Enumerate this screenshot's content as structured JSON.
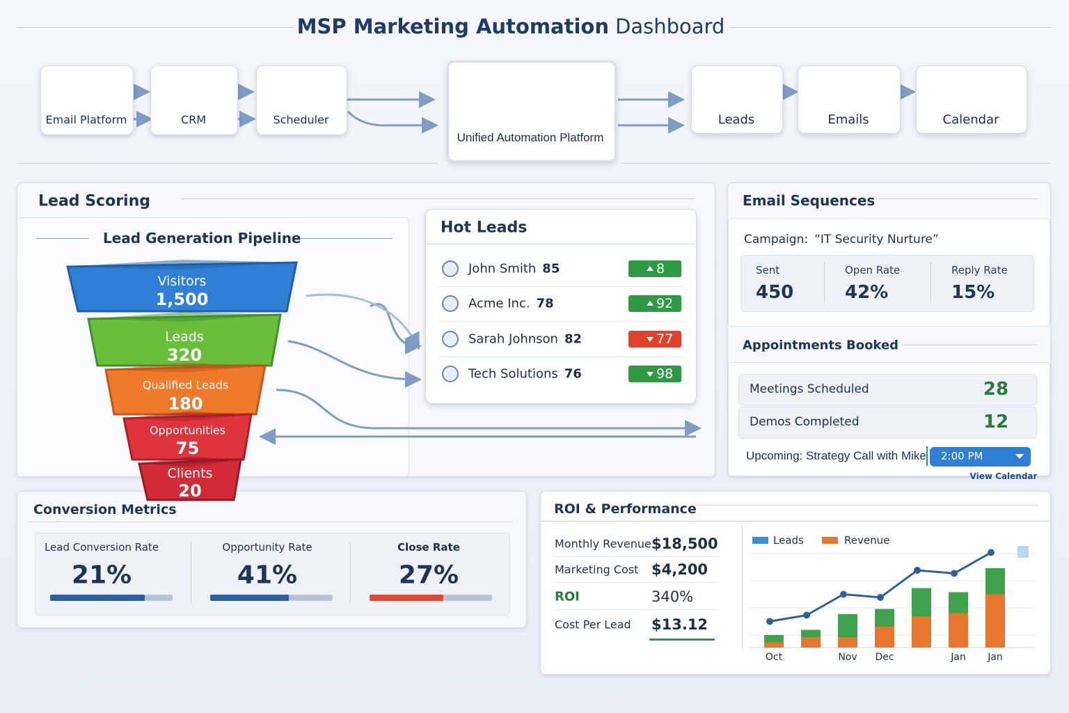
{
  "header": {
    "title_bold": "MSP Marketing Automation",
    "title_rest": "Dashboard"
  },
  "flow": {
    "sources": [
      "Email Platform",
      "CRM",
      "Scheduler"
    ],
    "hub": "Unified Automation Platform",
    "outputs": [
      "Leads",
      "Emails",
      "Calendar"
    ]
  },
  "lead_scoring": {
    "title": "Lead Scoring",
    "pipeline": {
      "title": "Lead Generation Pipeline",
      "stages": [
        {
          "label": "Visitors",
          "value": "1,500"
        },
        {
          "label": "Leads",
          "value": "320"
        },
        {
          "label": "Qualified Leads",
          "value": "180"
        },
        {
          "label": "Opportunities",
          "value": "75"
        },
        {
          "label": "Clients",
          "value": "20"
        }
      ]
    },
    "hot_leads": {
      "title": "Hot Leads",
      "rows": [
        {
          "name": "John Smith",
          "score": "85",
          "badge": "8",
          "trend": "up",
          "color": "#2e9a44"
        },
        {
          "name": "Acme Inc.",
          "score": "78",
          "badge": "92",
          "trend": "up",
          "color": "#2e9a44"
        },
        {
          "name": "Sarah Johnson",
          "score": "82",
          "badge": "77",
          "trend": "down",
          "color": "#e3412c"
        },
        {
          "name": "Tech Solutions",
          "score": "76",
          "badge": "98",
          "trend": "down",
          "color": "#2e9a44"
        }
      ]
    }
  },
  "email_sequences": {
    "title": "Email Sequences",
    "campaign_label": "Campaign:",
    "campaign": "“IT Security Nurture”",
    "stats": [
      {
        "label": "Sent",
        "value": "450"
      },
      {
        "label": "Open Rate",
        "value": "42%"
      },
      {
        "label": "Reply Rate",
        "value": "15%"
      }
    ]
  },
  "appointments": {
    "title": "Appointments Booked",
    "rows": [
      {
        "label": "Meetings Scheduled",
        "value": "28"
      },
      {
        "label": "Demos Completed",
        "value": "12"
      }
    ],
    "upcoming": "Upcoming: Strategy Call with Mike",
    "time": "2:00 PM",
    "link": "View Calendar"
  },
  "conversion": {
    "title": "Conversion Metrics",
    "metrics": [
      {
        "label": "Lead Conversion Rate",
        "value": "21%"
      },
      {
        "label": "Opportunity Rate",
        "value": "41%"
      },
      {
        "label": "Close Rate",
        "value": "27%"
      }
    ]
  },
  "roi": {
    "title": "ROI & Performance",
    "rows": [
      {
        "label": "Monthly Revenue",
        "value": "$18,500"
      },
      {
        "label": "Marketing Cost",
        "value": "$4,200"
      },
      {
        "label": "ROI",
        "value": "340%"
      },
      {
        "label": "Cost Per Lead",
        "value": "$13.12"
      }
    ],
    "chart": {
      "type": "bar",
      "categories": [
        "Oct",
        null,
        "Nov",
        "Dec",
        null,
        "Jan",
        "Jan"
      ],
      "ylim": [
        0,
        100
      ],
      "series": [
        {
          "name": "Revenue",
          "color": "#e8762c",
          "values": [
            5,
            10,
            10,
            20,
            30,
            33,
            51
          ]
        },
        {
          "color": "#3fa34d",
          "values": [
            7,
            7,
            22,
            17,
            27,
            20,
            25
          ]
        }
      ],
      "line": {
        "name": "Leads",
        "color": "#2f5fa0",
        "values": [
          25,
          31,
          51,
          48,
          74,
          71,
          91
        ]
      }
    }
  }
}
